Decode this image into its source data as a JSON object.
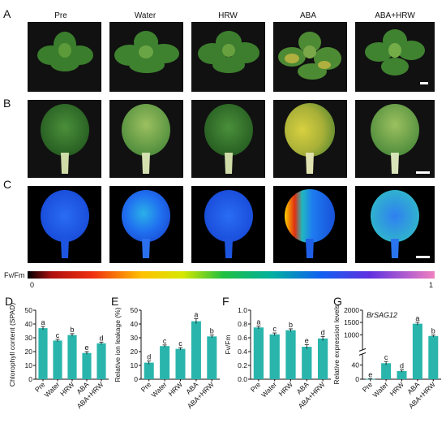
{
  "figure": {
    "conditions": [
      "Pre",
      "Water",
      "HRW",
      "ABA",
      "ABA+HRW"
    ],
    "panel_letters": [
      "A",
      "B",
      "C",
      "D",
      "E",
      "F",
      "G"
    ],
    "colorbar": {
      "label": "Fv/Fm",
      "min": "0",
      "max": "1"
    },
    "colors": {
      "bar": "#2ab5ac",
      "bar_edge": "#1d8c85",
      "photo_bg": "#111111",
      "leaf_dark": "#2f6f2a"
    }
  },
  "chart_data": [
    {
      "panel": "D",
      "type": "bar",
      "categories": [
        "Pre",
        "Water",
        "HRW",
        "ABA",
        "ABA+HRW"
      ],
      "values": [
        37,
        28,
        32,
        19,
        26
      ],
      "errors": [
        1.2,
        0.9,
        1.0,
        1.0,
        0.9
      ],
      "letters": [
        "a",
        "c",
        "b",
        "e",
        "d"
      ],
      "ylabel": "Chlorophyll content (SPAD)",
      "ylim": [
        0,
        50
      ],
      "yticks": [
        "0",
        "10",
        "20",
        "30",
        "40",
        "50"
      ]
    },
    {
      "panel": "E",
      "type": "bar",
      "categories": [
        "Pre",
        "Water",
        "HRW",
        "ABA",
        "ABA+HRW"
      ],
      "values": [
        12,
        24,
        22,
        42,
        31
      ],
      "errors": [
        1.2,
        0.8,
        0.9,
        1.8,
        1.0
      ],
      "letters": [
        "d",
        "c",
        "c",
        "a",
        "b"
      ],
      "ylabel": "Relative ion leakage (%)",
      "ylim": [
        0,
        50
      ],
      "yticks": [
        "0",
        "10",
        "20",
        "30",
        "40",
        "50"
      ]
    },
    {
      "panel": "F",
      "type": "bar",
      "categories": [
        "Pre",
        "Water",
        "HRW",
        "ABA",
        "ABA+HRW"
      ],
      "values": [
        0.75,
        0.65,
        0.71,
        0.47,
        0.59
      ],
      "errors": [
        0.02,
        0.02,
        0.02,
        0.03,
        0.03
      ],
      "letters": [
        "a",
        "c",
        "b",
        "e",
        "d"
      ],
      "ylabel": "Fv/Fm",
      "ylim": [
        0,
        1.0
      ],
      "yticks": [
        "0.0",
        "0.2",
        "0.4",
        "0.6",
        "0.8",
        "1.0"
      ]
    },
    {
      "panel": "G",
      "type": "bar",
      "categories": [
        "Pre",
        "Water",
        "HRW",
        "ABA",
        "ABA+HRW"
      ],
      "values": [
        1,
        45,
        23,
        1450,
        950
      ],
      "errors": [
        0.5,
        5,
        3,
        60,
        40
      ],
      "letters": [
        "e",
        "c",
        "d",
        "a",
        "b"
      ],
      "ylabel": "Relative expression levels",
      "gene": "BrSAG12",
      "axis_break": {
        "lower": [
          0,
          70
        ],
        "upper": [
          400,
          2000
        ]
      },
      "yticks": [
        "0",
        "40",
        "1000",
        "1500",
        "2000"
      ]
    }
  ]
}
